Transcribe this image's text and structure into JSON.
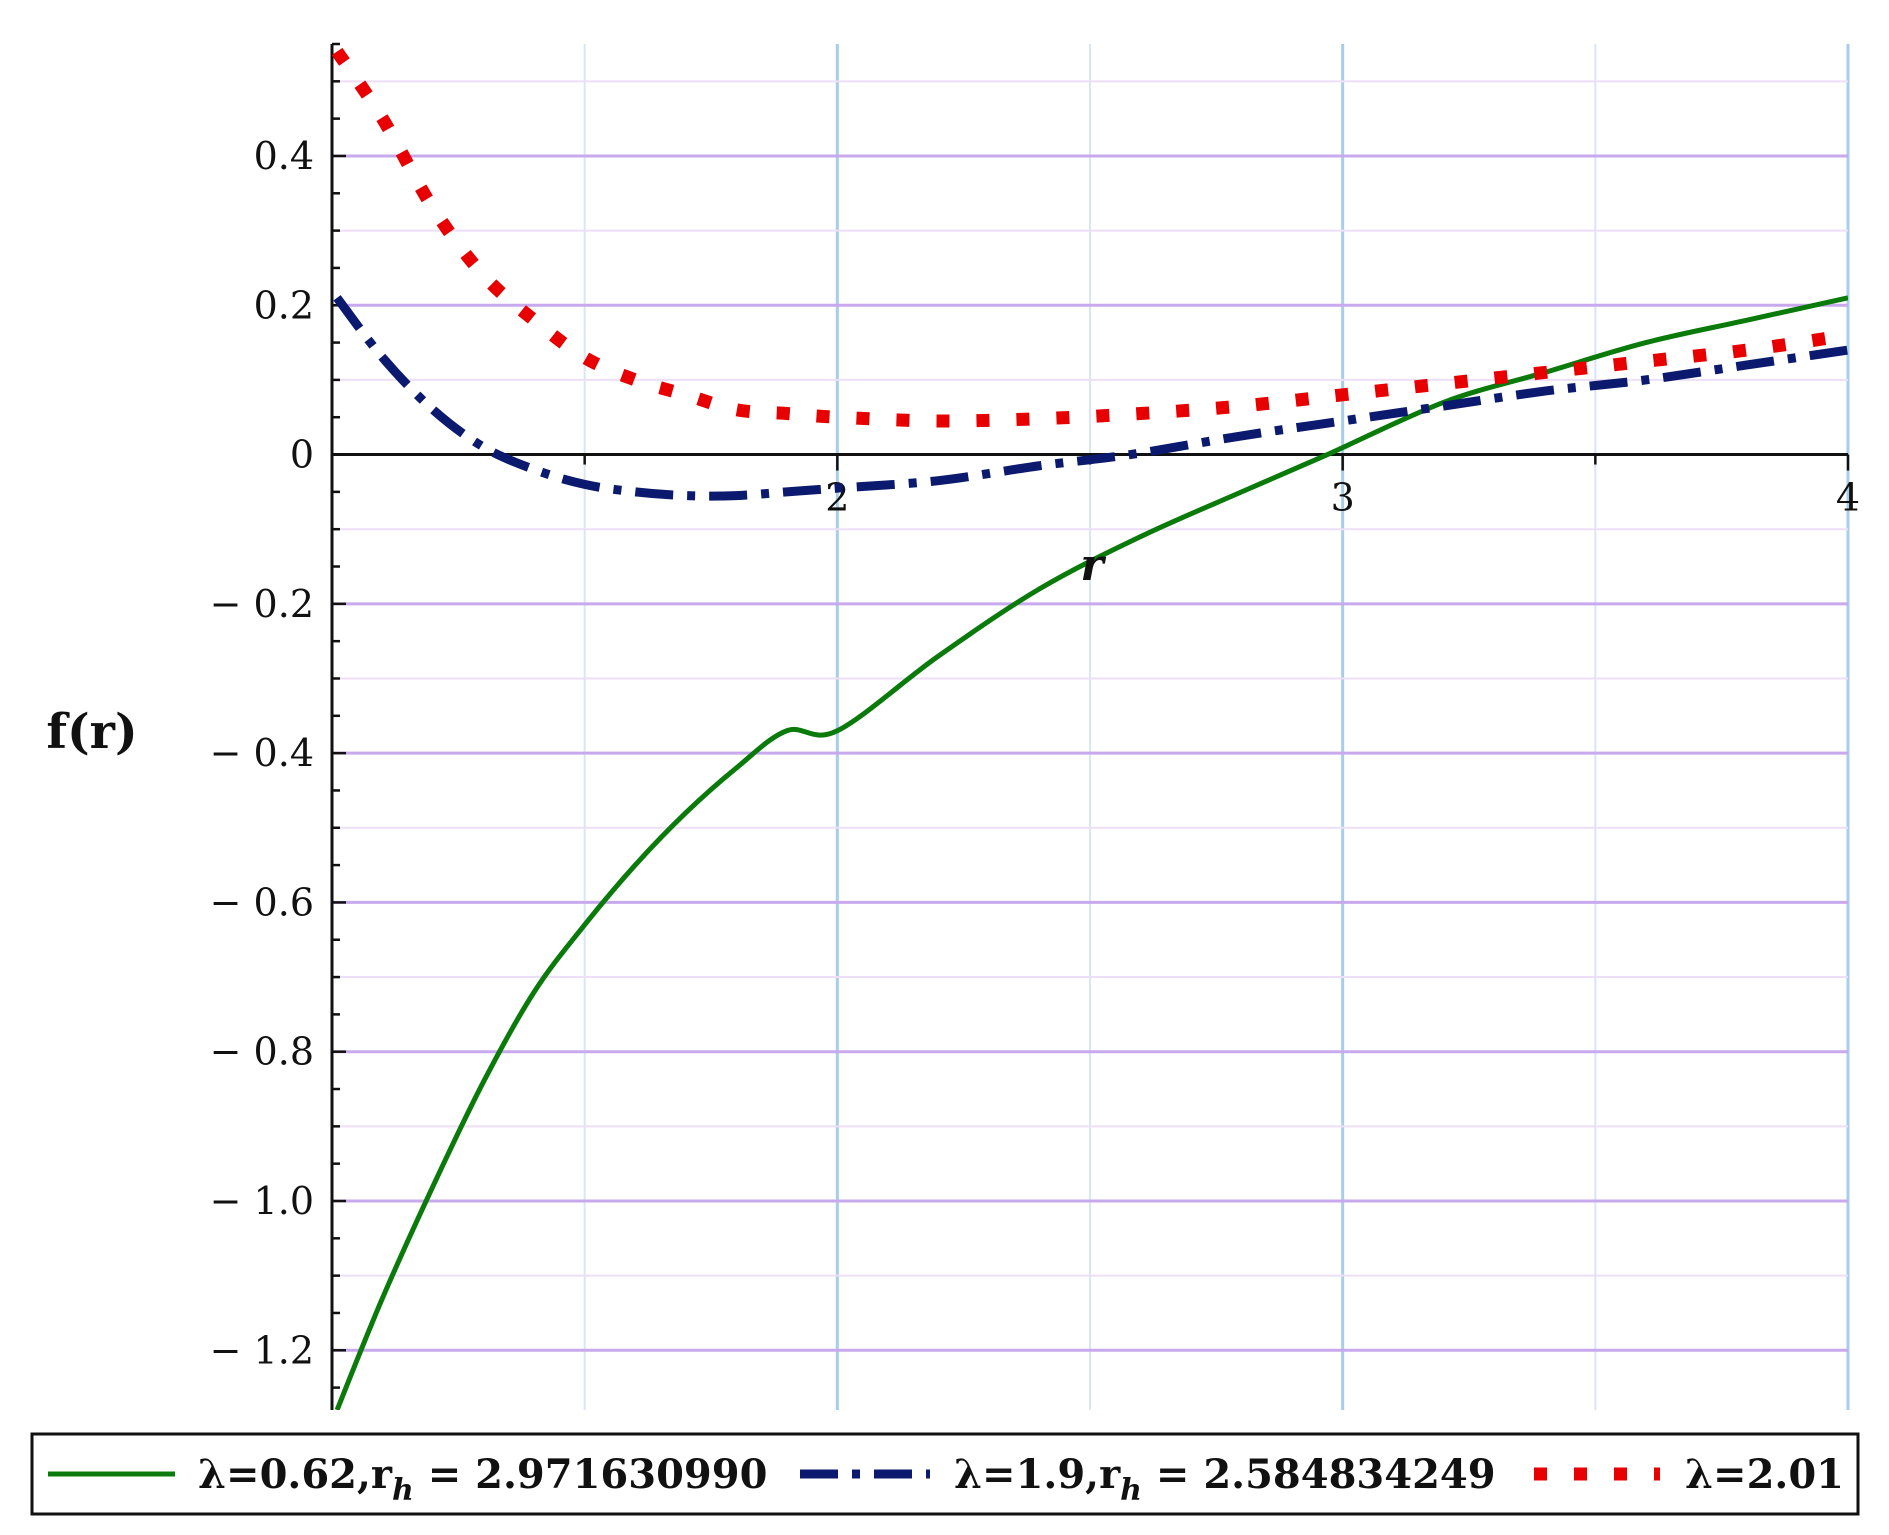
{
  "chart_data": {
    "type": "line",
    "title": "",
    "xlabel": "r",
    "ylabel": "f(r)",
    "xlim": [
      1.0,
      4.0
    ],
    "ylim": [
      -1.28,
      0.55
    ],
    "x_ticks": [
      2,
      3,
      4
    ],
    "x_tick_labels": [
      "2",
      "3",
      "4"
    ],
    "y_ticks": [
      0.4,
      0.2,
      0,
      -0.2,
      -0.4,
      -0.6,
      -0.8,
      -1.0,
      -1.2
    ],
    "y_tick_labels": [
      "0.4",
      "0.2",
      "0",
      "− 0.2",
      "− 0.4",
      "− 0.6",
      "− 0.8",
      "− 1.0",
      "− 1.2"
    ],
    "grid": true,
    "legend_position": "bottom",
    "series": [
      {
        "name": "λ=0.62,r_h = 2.971630990",
        "legend_main": "λ=0.62,r",
        "legend_sub": "h",
        "legend_tail": " = 2.971630990",
        "color": "#0a7a0a",
        "style": "solid",
        "x": [
          1.01,
          1.1,
          1.2,
          1.3,
          1.4,
          1.5,
          1.6,
          1.7,
          1.8,
          1.9,
          2.0,
          2.2,
          2.4,
          2.6,
          2.8,
          2.97,
          3.2,
          3.4,
          3.6,
          3.8,
          4.0
        ],
        "y": [
          -1.28,
          -1.13,
          -0.98,
          -0.84,
          -0.72,
          -0.63,
          -0.55,
          -0.48,
          -0.42,
          -0.37,
          -0.37,
          -0.27,
          -0.18,
          -0.11,
          -0.05,
          0.0,
          0.07,
          0.11,
          0.15,
          0.18,
          0.21
        ]
      },
      {
        "name": "λ=1.9,r_h = 2.584834249",
        "legend_main": "λ=1.9,r",
        "legend_sub": "h",
        "legend_tail": " = 2.584834249",
        "color": "#0b1a6e",
        "style": "dashdot",
        "x": [
          1.01,
          1.1,
          1.2,
          1.3,
          1.4,
          1.5,
          1.6,
          1.7,
          1.8,
          1.9,
          2.0,
          2.2,
          2.4,
          2.58,
          2.8,
          3.0,
          3.2,
          3.4,
          3.6,
          3.8,
          4.0
        ],
        "y": [
          0.21,
          0.13,
          0.06,
          0.01,
          -0.02,
          -0.04,
          -0.05,
          -0.055,
          -0.055,
          -0.05,
          -0.045,
          -0.035,
          -0.015,
          0.0,
          0.025,
          0.045,
          0.065,
          0.085,
          0.1,
          0.12,
          0.14
        ]
      },
      {
        "name": "λ=2.01",
        "legend_main": "λ=2.01",
        "legend_sub": "",
        "legend_tail": "",
        "color": "#e80000",
        "style": "dotted",
        "x": [
          1.01,
          1.1,
          1.2,
          1.3,
          1.4,
          1.5,
          1.6,
          1.7,
          1.8,
          1.9,
          2.0,
          2.2,
          2.4,
          2.6,
          2.8,
          3.0,
          3.2,
          3.4,
          3.6,
          3.8,
          4.0
        ],
        "y": [
          0.54,
          0.45,
          0.33,
          0.24,
          0.18,
          0.13,
          0.1,
          0.08,
          0.06,
          0.055,
          0.05,
          0.045,
          0.048,
          0.055,
          0.065,
          0.08,
          0.095,
          0.11,
          0.125,
          0.14,
          0.16
        ]
      }
    ]
  }
}
